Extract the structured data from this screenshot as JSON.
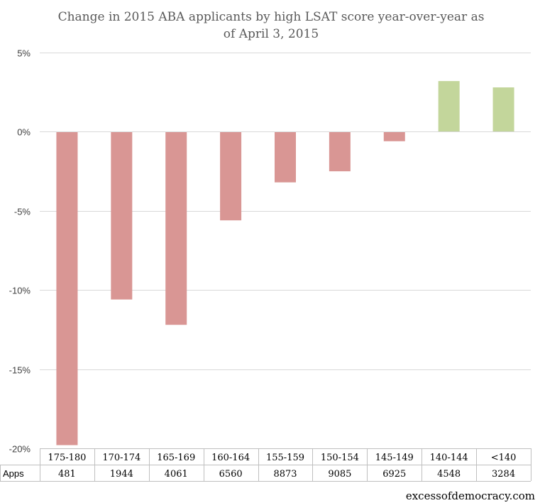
{
  "chart_data": {
    "type": "bar",
    "title_lines": [
      "Change in 2015 ABA applicants by high LSAT score year-over-year as",
      "of April  3, 2015"
    ],
    "categories": [
      "175-180",
      "170-174",
      "165-169",
      "160-164",
      "155-159",
      "150-154",
      "145-149",
      "140-144",
      "<140"
    ],
    "values": [
      -19.8,
      -10.6,
      -12.2,
      -5.6,
      -3.2,
      -2.5,
      -0.6,
      3.2,
      2.8
    ],
    "ylim": [
      -20,
      5
    ],
    "yticks": [
      5,
      0,
      -5,
      -10,
      -15,
      -20
    ],
    "ytick_labels": [
      "5%",
      "0%",
      "-5%",
      "-10%",
      "-15%",
      "-20%"
    ],
    "grid": true,
    "table_row_label": "Apps",
    "table_values": [
      "481",
      "1944",
      "4061",
      "6560",
      "8873",
      "9085",
      "6925",
      "4548",
      "3284"
    ],
    "negative_color": "#d99694",
    "positive_color": "#c3d69b"
  },
  "credit": "excessofdemocracy.com"
}
